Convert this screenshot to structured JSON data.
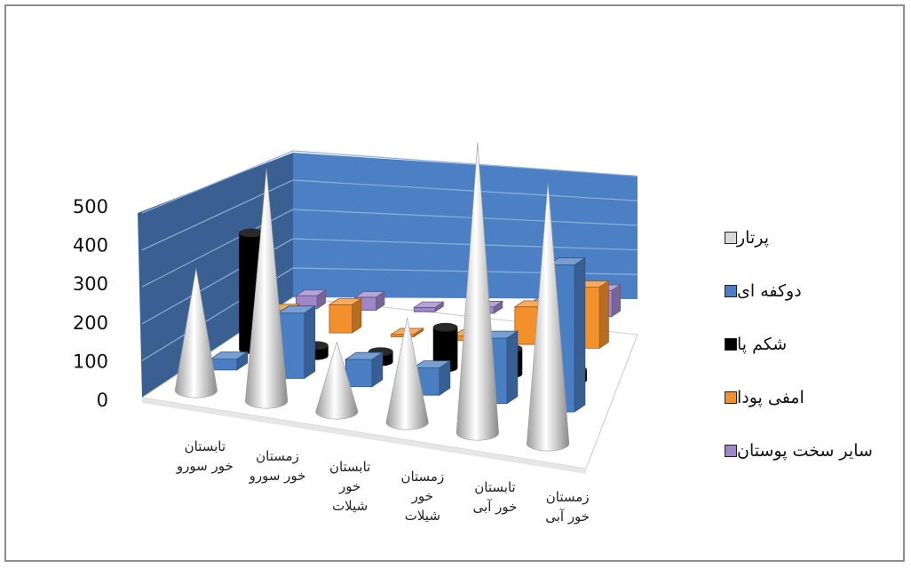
{
  "chart_data": {
    "type": "bar",
    "title": "",
    "xlabel": "",
    "ylabel": "",
    "ylim": [
      0,
      500
    ],
    "yticks": [
      "0",
      "100",
      "200",
      "300",
      "400",
      "500"
    ],
    "grid": true,
    "legend_position": "right",
    "categories": [
      [
        "تابستان",
        "خور سورو"
      ],
      [
        "زمستان",
        "خور سورو"
      ],
      [
        "تابستان",
        "خور",
        "شیلات"
      ],
      [
        "زمستان",
        "خور",
        "شیلات"
      ],
      [
        "تابستان",
        "خور آبی"
      ],
      [
        "زمستان",
        "خور آبی"
      ]
    ],
    "series": [
      {
        "name": "سایر سخت پوستان",
        "color": "#9f86c8",
        "shape": "box",
        "values": [
          30,
          30,
          10,
          15,
          30,
          60
        ]
      },
      {
        "name": "امفی پودا",
        "color": "#f2902c",
        "shape": "box",
        "values": [
          40,
          60,
          5,
          10,
          80,
          130
        ]
      },
      {
        "name": "شکم پا",
        "color": "#000000",
        "shape": "cylinder",
        "values": [
          230,
          20,
          20,
          80,
          50,
          20
        ]
      },
      {
        "name": "دوکفه ای",
        "color": "#4a7fc4",
        "shape": "box",
        "values": [
          20,
          120,
          50,
          50,
          120,
          270
        ]
      },
      {
        "name": "پرتار",
        "color": "#d8d8d8",
        "shape": "cone",
        "values": [
          210,
          400,
          120,
          180,
          500,
          450
        ]
      }
    ]
  }
}
